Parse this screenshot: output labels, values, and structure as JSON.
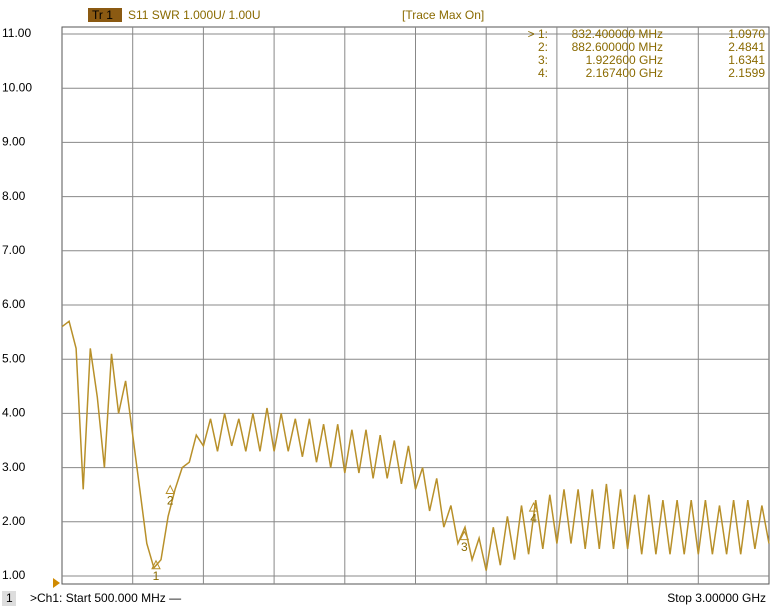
{
  "chart_data": {
    "type": "line",
    "trace_label": "Tr 1",
    "title": "S11 SWR 1.000U/ 1.00U",
    "status": "[Trace Max On]",
    "color": "#b8902a",
    "grid": true,
    "xlim": [
      500,
      3000
    ],
    "ylim": [
      1,
      11
    ],
    "yticks": [
      {
        "value": 1,
        "label": "1.00"
      },
      {
        "value": 2,
        "label": "2.00"
      },
      {
        "value": 3,
        "label": "3.00"
      },
      {
        "value": 4,
        "label": "4.00"
      },
      {
        "value": 5,
        "label": "5.00"
      },
      {
        "value": 6,
        "label": "6.00"
      },
      {
        "value": 7,
        "label": "7.00"
      },
      {
        "value": 8,
        "label": "8.00"
      },
      {
        "value": 9,
        "label": "9.00"
      },
      {
        "value": 10,
        "label": "10.00"
      },
      {
        "value": 11,
        "label": "11.00"
      }
    ],
    "x": [
      500,
      525,
      550,
      575,
      600,
      625,
      650,
      675,
      700,
      725,
      750,
      775,
      800,
      825,
      850,
      875,
      900,
      925,
      950,
      975,
      1000,
      1025,
      1050,
      1075,
      1100,
      1125,
      1150,
      1175,
      1200,
      1225,
      1250,
      1275,
      1300,
      1325,
      1350,
      1375,
      1400,
      1425,
      1450,
      1475,
      1500,
      1525,
      1550,
      1575,
      1600,
      1625,
      1650,
      1675,
      1700,
      1725,
      1750,
      1775,
      1800,
      1825,
      1850,
      1875,
      1900,
      1925,
      1950,
      1975,
      2000,
      2025,
      2050,
      2075,
      2100,
      2125,
      2150,
      2175,
      2200,
      2225,
      2250,
      2275,
      2300,
      2325,
      2350,
      2375,
      2400,
      2425,
      2450,
      2475,
      2500,
      2525,
      2550,
      2575,
      2600,
      2625,
      2650,
      2675,
      2700,
      2725,
      2750,
      2775,
      2800,
      2825,
      2850,
      2875,
      2900,
      2925,
      2950,
      2975,
      3000
    ],
    "values": [
      5.6,
      5.7,
      5.2,
      2.6,
      5.2,
      4.3,
      3.0,
      5.1,
      4.0,
      4.6,
      3.6,
      2.6,
      1.6,
      1.15,
      1.3,
      2.1,
      2.6,
      3.0,
      3.1,
      3.6,
      3.4,
      3.9,
      3.3,
      4.0,
      3.4,
      3.9,
      3.3,
      4.0,
      3.3,
      4.1,
      3.3,
      4.0,
      3.3,
      3.9,
      3.2,
      3.9,
      3.1,
      3.8,
      3.0,
      3.8,
      2.9,
      3.7,
      2.9,
      3.7,
      2.8,
      3.6,
      2.8,
      3.5,
      2.7,
      3.4,
      2.6,
      3.0,
      2.2,
      2.8,
      1.9,
      2.3,
      1.6,
      1.9,
      1.3,
      1.7,
      1.1,
      1.9,
      1.2,
      2.1,
      1.3,
      2.3,
      1.4,
      2.4,
      1.5,
      2.5,
      1.6,
      2.6,
      1.6,
      2.6,
      1.5,
      2.6,
      1.5,
      2.7,
      1.5,
      2.6,
      1.5,
      2.5,
      1.4,
      2.5,
      1.4,
      2.4,
      1.4,
      2.4,
      1.4,
      2.4,
      1.4,
      2.4,
      1.4,
      2.3,
      1.4,
      2.4,
      1.4,
      2.4,
      1.5,
      2.3,
      1.6
    ],
    "markers": [
      {
        "id": "1",
        "table_label": "> 1:",
        "x": 832.4,
        "x_label": "832.400000 MHz",
        "value": 1.097,
        "value_label": "1.0970"
      },
      {
        "id": "2",
        "table_label": "2:",
        "x": 882.6,
        "x_label": "882.600000 MHz",
        "value": 2.4841,
        "value_label": "2.4841"
      },
      {
        "id": "3",
        "table_label": "3:",
        "x": 1922.6,
        "x_label": "1.922600 GHz",
        "value": 1.6341,
        "value_label": "1.6341"
      },
      {
        "id": "4",
        "table_label": "4:",
        "x": 2167.4,
        "x_label": "2.167400 GHz",
        "value": 2.1599,
        "value_label": "2.1599"
      }
    ],
    "channel": "1",
    "start_label": ">Ch1: Start 500.000 MHz —",
    "stop_label": "Stop 3.00000 GHz"
  }
}
